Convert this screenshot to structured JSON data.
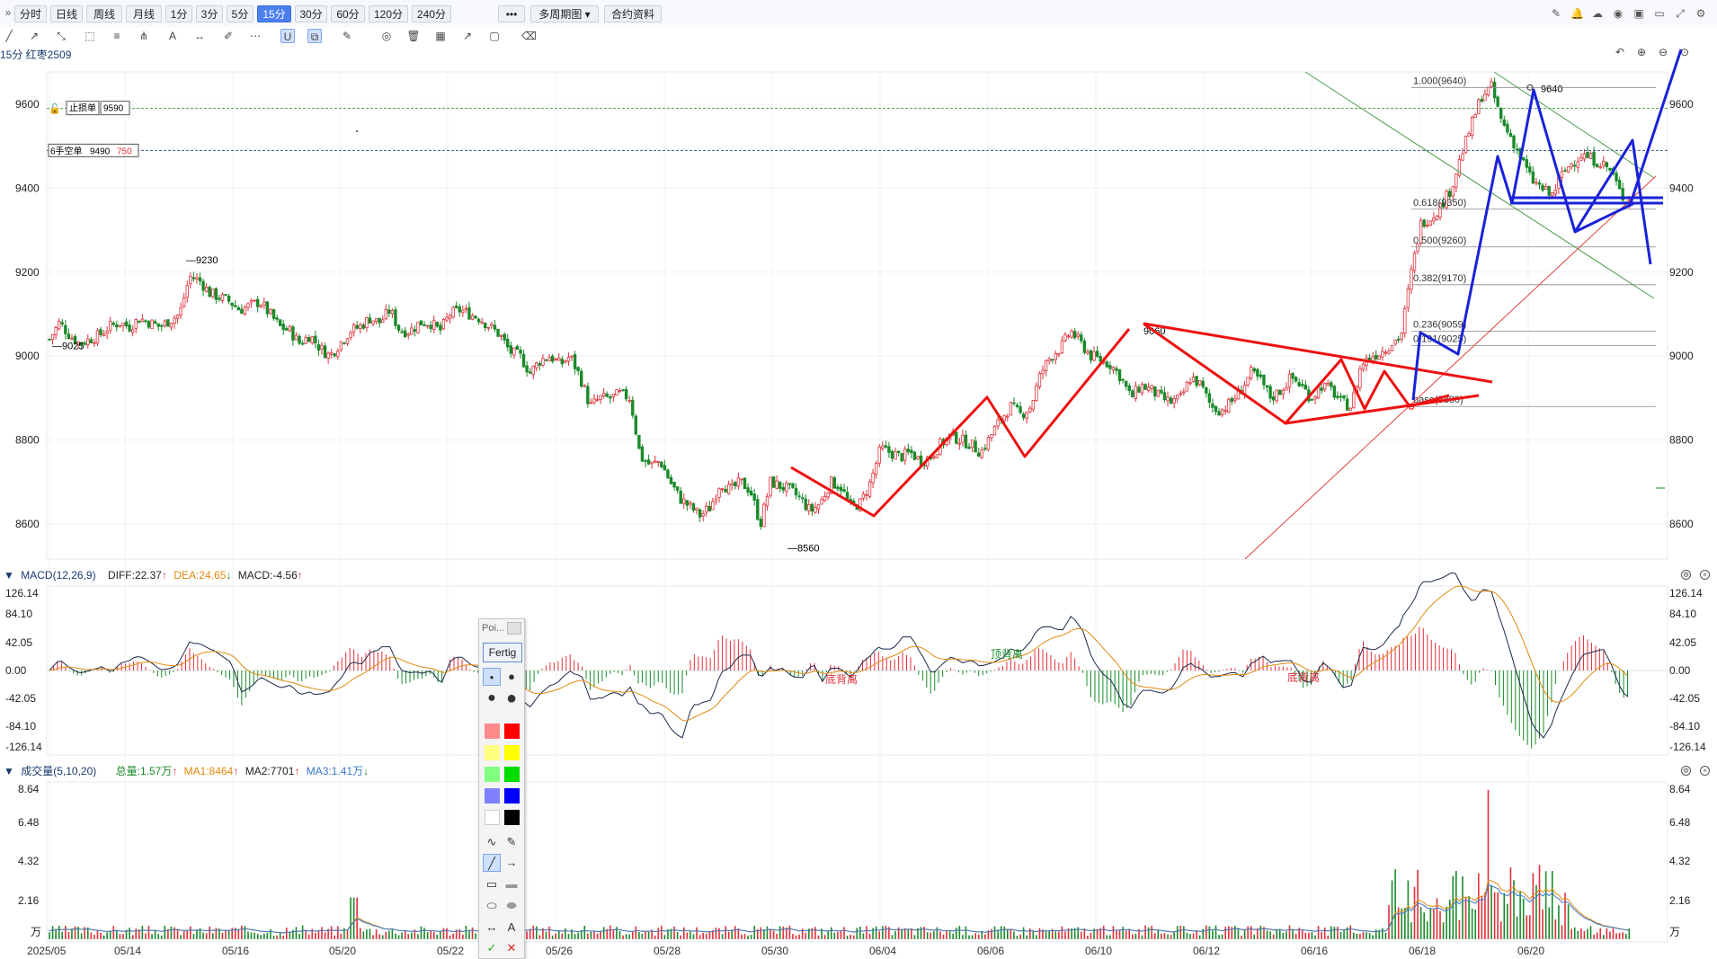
{
  "toolbar": {
    "expand_glyph": "»",
    "periods": [
      "分时",
      "日线",
      "周线",
      "月线",
      "1分",
      "3分",
      "5分",
      "15分",
      "30分",
      "60分",
      "120分",
      "240分"
    ],
    "active_period": "15分",
    "more": "•••",
    "multi_period": "多周期图 ▾",
    "contract_info": "合约资料",
    "right_icons": [
      "pen-icon",
      "bell-icon",
      "cloud-icon",
      "camera-icon",
      "save-icon",
      "monitor-icon",
      "fullscreen-icon",
      "settings-icon"
    ]
  },
  "draw_toolbar": {
    "icons": [
      "line-icon",
      "ray-icon",
      "segment-icon",
      "transform-icon",
      "fibonacci-icon",
      "pitchfork-icon",
      "text-icon",
      "measure-icon",
      "brush-icon",
      "more-icon",
      "magnet-icon",
      "lock-drawings-icon",
      "edit-icon",
      "eye-icon",
      "delete-icon",
      "grid-icon",
      "share-icon",
      "comment-icon",
      "eraser-icon"
    ],
    "right_icons": [
      "undo-icon",
      "zoom-in-icon",
      "zoom-out-icon",
      "reset-zoom-icon"
    ]
  },
  "symbol": "15分 红枣2509",
  "orders": {
    "stop_loss": {
      "lock": "🔓",
      "label": "止损单",
      "price": "9590"
    },
    "short": {
      "label": "6手空单",
      "price": "9490",
      "qty": "750"
    }
  },
  "price_axis": {
    "ticks": [
      "9600",
      "9400",
      "9200",
      "9000",
      "8800",
      "8600"
    ]
  },
  "annotations": {
    "high1": "9230",
    "low1": "9025",
    "low2": "8560",
    "peak": "9640",
    "mid": "9060"
  },
  "fib": {
    "levels": [
      {
        "label": "1.000(9640)",
        "price": 9640
      },
      {
        "label": "0.618(9350)",
        "price": 9350
      },
      {
        "label": "0.500(9260)",
        "price": 9260
      },
      {
        "label": "0.382(9170)",
        "price": 9170
      },
      {
        "label": "0.236(9059)",
        "price": 9059
      },
      {
        "label": "0.191(9025)",
        "price": 9025
      },
      {
        "label": "base(8880)",
        "price": 8880
      }
    ]
  },
  "macd": {
    "title": "MACD(12,26,9)",
    "diff": "DIFF:22.37",
    "diff_arrow": "↑",
    "dea": "DEA:24.65",
    "dea_arrow": "↓",
    "macd": "MACD:-4.56",
    "macd_arrow": "↑",
    "ticks": [
      "126.14",
      "84.10",
      "42.05",
      "0.00",
      "-42.05",
      "-84.10",
      "-126.14"
    ],
    "labels": [
      "底背离",
      "顶背离",
      "底背离"
    ]
  },
  "volume": {
    "title": "成交量(5,10,20)",
    "total": "总量:1.57万",
    "total_arrow": "↑",
    "ma1": "MA1:8464",
    "ma1_arrow": "↑",
    "ma2": "MA2:7701",
    "ma2_arrow": "↑",
    "ma3": "MA3:1.41万",
    "ma3_arrow": "↓",
    "ticks": [
      "8.64",
      "6.48",
      "4.32",
      "2.16"
    ],
    "unit": "万"
  },
  "x_axis": {
    "dates": [
      "2025/05",
      "05/14",
      "05/16",
      "05/20",
      "05/22",
      "05/26",
      "05/28",
      "05/30",
      "06/04",
      "06/06",
      "06/10",
      "06/12",
      "06/16",
      "06/18",
      "06/20"
    ]
  },
  "palette": {
    "title": "Poi...",
    "done_button": "Fertig",
    "colors": [
      "#ff8a8a",
      "#ff0000",
      "#ffff80",
      "#ffff00",
      "#80ff80",
      "#00dd00",
      "#8080ff",
      "#0000ff",
      "#ffffff",
      "#000000"
    ],
    "text_tool": "A",
    "confirm": "✓",
    "cancel": "✕"
  },
  "colors": {
    "up": "#e0303a",
    "down": "#1a8a2a",
    "blue_draw": "#1a22d8",
    "red_draw": "#ee1111"
  },
  "chart_data": {
    "type": "candlestick",
    "title": "15分 红枣2509",
    "price_ylim": [
      8520,
      9700
    ],
    "price_ticks": [
      8600,
      8800,
      9000,
      9200,
      9400,
      9600
    ],
    "close_path": [
      [
        0,
        9040
      ],
      [
        5,
        9080
      ],
      [
        10,
        9050
      ],
      [
        15,
        9030
      ],
      [
        20,
        9040
      ],
      [
        25,
        9050
      ],
      [
        30,
        9070
      ],
      [
        35,
        9080
      ],
      [
        40,
        9070
      ],
      [
        45,
        9090
      ],
      [
        50,
        9080
      ],
      [
        55,
        9070
      ],
      [
        60,
        9085
      ],
      [
        65,
        9100
      ],
      [
        70,
        9190
      ],
      [
        75,
        9180
      ],
      [
        80,
        9150
      ],
      [
        85,
        9140
      ],
      [
        90,
        9130
      ],
      [
        95,
        9110
      ],
      [
        100,
        9120
      ],
      [
        105,
        9130
      ],
      [
        110,
        9100
      ],
      [
        115,
        9070
      ],
      [
        120,
        9060
      ],
      [
        125,
        9030
      ],
      [
        130,
        9050
      ],
      [
        135,
        9020
      ],
      [
        140,
        9000
      ],
      [
        145,
        9030
      ],
      [
        150,
        9060
      ],
      [
        155,
        9070
      ],
      [
        160,
        9090
      ],
      [
        165,
        9080
      ],
      [
        170,
        9110
      ],
      [
        175,
        9060
      ],
      [
        180,
        9060
      ],
      [
        185,
        9080
      ],
      [
        190,
        9080
      ],
      [
        195,
        9060
      ],
      [
        200,
        9100
      ],
      [
        205,
        9110
      ],
      [
        210,
        9100
      ],
      [
        215,
        9090
      ],
      [
        220,
        9070
      ],
      [
        225,
        9050
      ],
      [
        230,
        9010
      ],
      [
        235,
        9000
      ],
      [
        240,
        8960
      ],
      [
        245,
        8990
      ],
      [
        250,
        9000
      ],
      [
        255,
        8980
      ],
      [
        260,
        9000
      ],
      [
        265,
        8950
      ],
      [
        270,
        8880
      ],
      [
        275,
        8900
      ],
      [
        280,
        8900
      ],
      [
        285,
        8910
      ],
      [
        290,
        8900
      ],
      [
        295,
        8760
      ],
      [
        300,
        8740
      ],
      [
        305,
        8750
      ],
      [
        310,
        8700
      ],
      [
        315,
        8660
      ],
      [
        320,
        8640
      ],
      [
        325,
        8620
      ],
      [
        330,
        8640
      ],
      [
        335,
        8700
      ],
      [
        340,
        8680
      ],
      [
        345,
        8700
      ],
      [
        350,
        8680
      ],
      [
        355,
        8600
      ],
      [
        360,
        8700
      ],
      [
        365,
        8690
      ],
      [
        370,
        8680
      ],
      [
        375,
        8660
      ],
      [
        380,
        8630
      ],
      [
        385,
        8650
      ],
      [
        390,
        8700
      ],
      [
        395,
        8690
      ],
      [
        400,
        8640
      ],
      [
        405,
        8650
      ],
      [
        410,
        8700
      ],
      [
        415,
        8780
      ],
      [
        420,
        8770
      ],
      [
        425,
        8760
      ],
      [
        430,
        8770
      ],
      [
        435,
        8750
      ],
      [
        440,
        8760
      ],
      [
        445,
        8790
      ],
      [
        450,
        8810
      ],
      [
        455,
        8800
      ],
      [
        460,
        8790
      ],
      [
        465,
        8770
      ],
      [
        470,
        8810
      ],
      [
        475,
        8850
      ],
      [
        480,
        8880
      ],
      [
        485,
        8860
      ],
      [
        490,
        8880
      ],
      [
        495,
        8960
      ],
      [
        500,
        9000
      ],
      [
        505,
        9020
      ],
      [
        510,
        9060
      ],
      [
        515,
        9030
      ],
      [
        520,
        9000
      ],
      [
        525,
        8990
      ],
      [
        530,
        8980
      ],
      [
        535,
        8950
      ],
      [
        540,
        8900
      ],
      [
        545,
        8930
      ],
      [
        550,
        8920
      ],
      [
        555,
        8900
      ],
      [
        560,
        8890
      ],
      [
        565,
        8900
      ],
      [
        570,
        8950
      ],
      [
        575,
        8930
      ],
      [
        580,
        8880
      ],
      [
        585,
        8870
      ],
      [
        590,
        8890
      ],
      [
        595,
        8920
      ],
      [
        600,
        8960
      ],
      [
        605,
        8940
      ],
      [
        610,
        8900
      ],
      [
        615,
        8920
      ],
      [
        620,
        8950
      ],
      [
        625,
        8930
      ],
      [
        630,
        8900
      ],
      [
        635,
        8930
      ],
      [
        640,
        8920
      ],
      [
        645,
        8890
      ],
      [
        650,
        8880
      ],
      [
        655,
        8980
      ],
      [
        660,
        9000
      ],
      [
        665,
        9010
      ],
      [
        670,
        9030
      ],
      [
        675,
        9050
      ],
      [
        680,
        9200
      ],
      [
        685,
        9320
      ],
      [
        690,
        9330
      ],
      [
        695,
        9360
      ],
      [
        700,
        9400
      ],
      [
        705,
        9480
      ],
      [
        710,
        9550
      ],
      [
        715,
        9620
      ],
      [
        720,
        9640
      ],
      [
        725,
        9560
      ],
      [
        730,
        9520
      ],
      [
        735,
        9470
      ],
      [
        740,
        9420
      ],
      [
        745,
        9400
      ],
      [
        750,
        9380
      ],
      [
        755,
        9430
      ],
      [
        760,
        9460
      ],
      [
        765,
        9480
      ],
      [
        770,
        9470
      ],
      [
        775,
        9460
      ],
      [
        780,
        9440
      ],
      [
        785,
        9380
      ],
      [
        790,
        9370
      ]
    ],
    "macd_ylim": [
      -126.14,
      126.14
    ],
    "volume_ylim": [
      0,
      8.64
    ],
    "volume_unit": "万",
    "x_categories": [
      "2025/05",
      "05/14",
      "05/16",
      "05/20",
      "05/22",
      "05/26",
      "05/28",
      "05/30",
      "06/04",
      "06/06",
      "06/10",
      "06/12",
      "06/16",
      "06/18",
      "06/20"
    ]
  }
}
